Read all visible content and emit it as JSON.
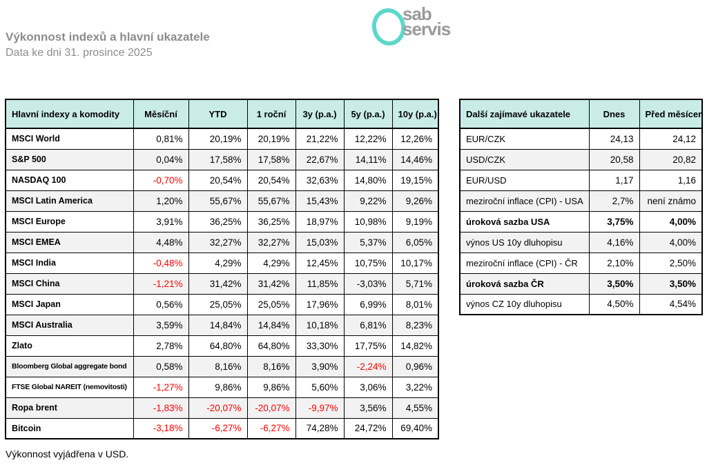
{
  "header": {
    "title": "Výkonnost indexů a hlavní ukazatele",
    "subtitle": "Data ke dni 31. prosince 2025",
    "logo": {
      "line1": "sab",
      "line2": "servis"
    }
  },
  "colors": {
    "accent": "#5ed7cb",
    "table_header_bg": "#c9ece9",
    "row_alt": "#f2f2f2",
    "negative": "#ff0000",
    "heading_gray": "#8c8c8c",
    "logo_gray": "#9a9a9a"
  },
  "main_table": {
    "columns": [
      "Hlavní indexy a komodity",
      "Měsíční",
      "YTD",
      "1 roční",
      "3y (p.a.)",
      "5y (p.a.)",
      "10y (p.a.)"
    ],
    "rows": [
      {
        "label": "MSCI World",
        "values": [
          "0,81%",
          "20,19%",
          "20,19%",
          "21,22%",
          "12,22%",
          "12,26%"
        ],
        "red": []
      },
      {
        "label": "S&P 500",
        "values": [
          "0,04%",
          "17,58%",
          "17,58%",
          "22,67%",
          "14,11%",
          "14,46%"
        ],
        "red": []
      },
      {
        "label": "NASDAQ 100",
        "values": [
          "-0,70%",
          "20,54%",
          "20,54%",
          "32,63%",
          "14,80%",
          "19,15%"
        ],
        "red": [
          0
        ]
      },
      {
        "label": "MSCI Latin America",
        "values": [
          "1,20%",
          "55,67%",
          "55,67%",
          "15,43%",
          "9,22%",
          "9,26%"
        ],
        "red": []
      },
      {
        "label": "MSCI Europe",
        "values": [
          "3,91%",
          "36,25%",
          "36,25%",
          "18,97%",
          "10,98%",
          "9,19%"
        ],
        "red": []
      },
      {
        "label": "MSCI EMEA",
        "values": [
          "4,48%",
          "32,27%",
          "32,27%",
          "15,03%",
          "5,37%",
          "6,05%"
        ],
        "red": []
      },
      {
        "label": "MSCI India",
        "values": [
          "-0,48%",
          "4,29%",
          "4,29%",
          "12,45%",
          "10,75%",
          "10,17%"
        ],
        "red": [
          0
        ]
      },
      {
        "label": "MSCI China",
        "values": [
          "-1,21%",
          "31,42%",
          "31,42%",
          "11,85%",
          "-3,03%",
          "5,71%"
        ],
        "red": [
          0
        ]
      },
      {
        "label": "MSCI Japan",
        "values": [
          "0,56%",
          "25,05%",
          "25,05%",
          "17,96%",
          "6,99%",
          "8,01%"
        ],
        "red": []
      },
      {
        "label": "MSCI Australia",
        "values": [
          "3,59%",
          "14,84%",
          "14,84%",
          "10,18%",
          "6,81%",
          "8,23%"
        ],
        "red": []
      },
      {
        "label": "Zlato",
        "values": [
          "2,78%",
          "64,80%",
          "64,80%",
          "33,30%",
          "17,75%",
          "14,82%"
        ],
        "red": []
      },
      {
        "label": "Bloomberg Global aggregate bond",
        "values": [
          "0,58%",
          "8,16%",
          "8,16%",
          "3,90%",
          "-2,24%",
          "0,96%"
        ],
        "red": [
          4
        ],
        "small": true
      },
      {
        "label": "FTSE Global NAREIT (nemovitosti)",
        "values": [
          "-1,27%",
          "9,86%",
          "9,86%",
          "5,60%",
          "3,06%",
          "3,22%"
        ],
        "red": [
          0
        ],
        "small": true
      },
      {
        "label": "Ropa brent",
        "values": [
          "-1,83%",
          "-20,07%",
          "-20,07%",
          "-9,97%",
          "3,56%",
          "4,55%"
        ],
        "red": [
          0,
          1,
          2,
          3
        ]
      },
      {
        "label": "Bitcoin",
        "values": [
          "-3,18%",
          "-6,27%",
          "-6,27%",
          "74,28%",
          "24,72%",
          "69,40%"
        ],
        "red": [
          0,
          1,
          2
        ]
      }
    ]
  },
  "indicators_table": {
    "columns": [
      "Další zajímavé ukazatele",
      "Dnes",
      "Před měsícem"
    ],
    "rows": [
      {
        "label": "EUR/CZK",
        "values": [
          "24,13",
          "24,12"
        ]
      },
      {
        "label": "USD/CZK",
        "values": [
          "20,58",
          "20,82"
        ]
      },
      {
        "label": "EUR/USD",
        "values": [
          "1,17",
          "1,16"
        ]
      },
      {
        "label": "meziroční inflace (CPI) - USA",
        "values": [
          "2,7%",
          "není známo"
        ]
      },
      {
        "label": "úroková sazba USA",
        "values": [
          "3,75%",
          "4,00%"
        ],
        "bold": true
      },
      {
        "label": "výnos US 10y dluhopisu",
        "values": [
          "4,16%",
          "4,00%"
        ]
      },
      {
        "label": "meziroční inflace (CPI) - ČR",
        "values": [
          "2,10%",
          "2,50%"
        ]
      },
      {
        "label": "úroková sazba ČR",
        "values": [
          "3,50%",
          "3,50%"
        ],
        "bold": true
      },
      {
        "label": "výnos CZ 10y dluhopisu",
        "values": [
          "4,50%",
          "4,54%"
        ]
      }
    ]
  },
  "footer": {
    "note": "Výkonnost vyjádřena v USD."
  }
}
